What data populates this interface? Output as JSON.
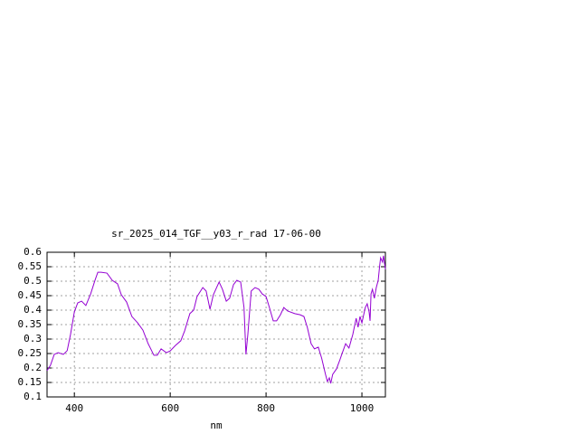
{
  "chart_data": {
    "type": "line",
    "title": "sr_2025_014_TGF__y03_r_rad 17-06-00",
    "x_label": "nm",
    "xlim": [
      343,
      1049
    ],
    "ylim": [
      0.1,
      0.6
    ],
    "xticks": [
      400,
      600,
      800,
      1000
    ],
    "yticks": [
      0.1,
      0.15,
      0.2,
      0.25,
      0.3,
      0.35,
      0.4,
      0.45,
      0.5,
      0.55,
      0.6
    ],
    "grid": true,
    "series": [
      {
        "color": "#9400d3",
        "x": [
          343,
          350,
          358,
          366,
          377,
          385,
          392,
          400,
          407,
          415,
          424,
          434,
          443,
          449,
          456,
          468,
          479,
          490,
          498,
          509,
          520,
          532,
          543,
          554,
          566,
          573,
          581,
          592,
          600,
          611,
          622,
          630,
          641,
          649,
          656,
          668,
          675,
          683,
          690,
          702,
          709,
          717,
          724,
          732,
          739,
          747,
          754,
          758,
          762,
          769,
          777,
          785,
          792,
          800,
          807,
          815,
          822,
          830,
          837,
          845,
          860,
          871,
          879,
          886,
          894,
          901,
          909,
          916,
          924,
          928,
          932,
          935,
          939,
          947,
          954,
          958,
          966,
          973,
          981,
          988,
          992,
          996,
          1000,
          1007,
          1011,
          1015,
          1017,
          1019,
          1022,
          1026,
          1030,
          1034,
          1037,
          1039,
          1043,
          1045,
          1049
        ],
        "values": [
          0.191,
          0.209,
          0.247,
          0.253,
          0.247,
          0.26,
          0.316,
          0.394,
          0.425,
          0.431,
          0.416,
          0.456,
          0.503,
          0.531,
          0.531,
          0.528,
          0.503,
          0.491,
          0.453,
          0.428,
          0.378,
          0.356,
          0.331,
          0.284,
          0.244,
          0.244,
          0.266,
          0.253,
          0.259,
          0.278,
          0.294,
          0.328,
          0.388,
          0.4,
          0.447,
          0.478,
          0.466,
          0.403,
          0.453,
          0.497,
          0.472,
          0.431,
          0.441,
          0.488,
          0.503,
          0.497,
          0.409,
          0.247,
          0.316,
          0.466,
          0.478,
          0.472,
          0.456,
          0.447,
          0.409,
          0.363,
          0.363,
          0.384,
          0.409,
          0.397,
          0.388,
          0.384,
          0.378,
          0.341,
          0.284,
          0.266,
          0.272,
          0.234,
          0.178,
          0.153,
          0.166,
          0.147,
          0.178,
          0.197,
          0.228,
          0.247,
          0.284,
          0.269,
          0.316,
          0.372,
          0.341,
          0.378,
          0.356,
          0.409,
          0.422,
          0.394,
          0.363,
          0.456,
          0.472,
          0.441,
          0.478,
          0.503,
          0.553,
          0.581,
          0.566,
          0.588,
          0.541
        ]
      }
    ]
  }
}
